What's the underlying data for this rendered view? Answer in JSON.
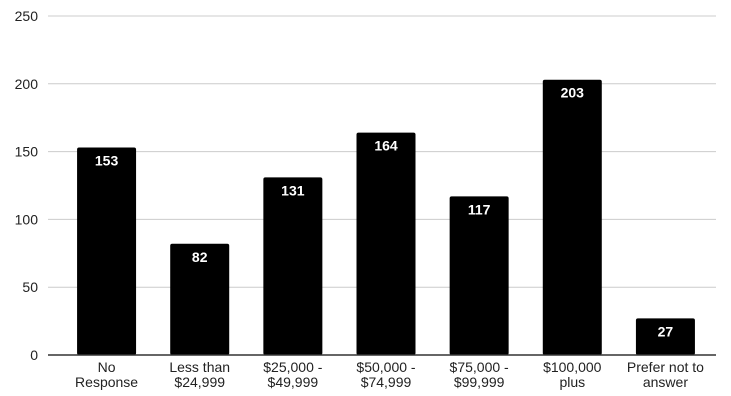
{
  "chart_data": {
    "type": "bar",
    "title": "",
    "xlabel": "",
    "ylabel": "",
    "categories": [
      "No Response",
      "Less than $24,999",
      "$25,000 - $49,999",
      "$50,000 - $74,999",
      "$75,000 - $99,999",
      "$100,000 plus",
      "Prefer not to answer"
    ],
    "category_lines": [
      [
        "No",
        "Response"
      ],
      [
        "Less than",
        "$24,999"
      ],
      [
        "$25,000 -",
        "$49,999"
      ],
      [
        "$50,000 -",
        "$74,999"
      ],
      [
        "$75,000 -",
        "$99,999"
      ],
      [
        "$100,000",
        "plus"
      ],
      [
        "Prefer not to",
        "answer"
      ]
    ],
    "values": [
      153,
      82,
      131,
      164,
      117,
      203,
      27
    ],
    "ylim": [
      0,
      250
    ],
    "yticks": [
      0,
      50,
      100,
      150,
      200,
      250
    ],
    "grid": true,
    "legend": "none",
    "colors": {
      "bar": "#000000",
      "bar_label": "#ffffff",
      "grid": "#cccccc",
      "axis": "#333333",
      "tick_text": "#222222"
    }
  }
}
